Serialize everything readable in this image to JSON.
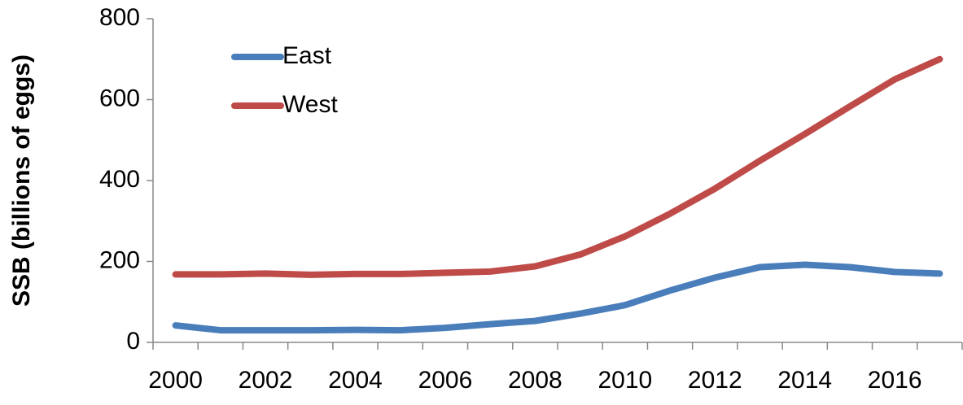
{
  "chart_data": {
    "type": "line",
    "y_label": "SSB (billions of eggs)",
    "categories": [
      "2000",
      null,
      "2002",
      null,
      "2004",
      null,
      "2006",
      null,
      "2008",
      null,
      "2010",
      null,
      "2012",
      null,
      "2014",
      null,
      "2016",
      null
    ],
    "series": [
      {
        "name": "East",
        "color": "#4a7ebb",
        "values": [
          42,
          30,
          30,
          30,
          31,
          30,
          36,
          45,
          53,
          71,
          92,
          128,
          160,
          186,
          192,
          186,
          174,
          170
        ]
      },
      {
        "name": "West",
        "color": "#be4b48",
        "values": [
          168,
          168,
          170,
          167,
          169,
          169,
          172,
          175,
          188,
          217,
          262,
          318,
          380,
          449,
          515,
          583,
          650,
          700
        ]
      }
    ],
    "ylim": [
      0,
      800
    ],
    "yticks": [
      0,
      200,
      400,
      600,
      800
    ],
    "grid": false,
    "legend": "top-left"
  }
}
